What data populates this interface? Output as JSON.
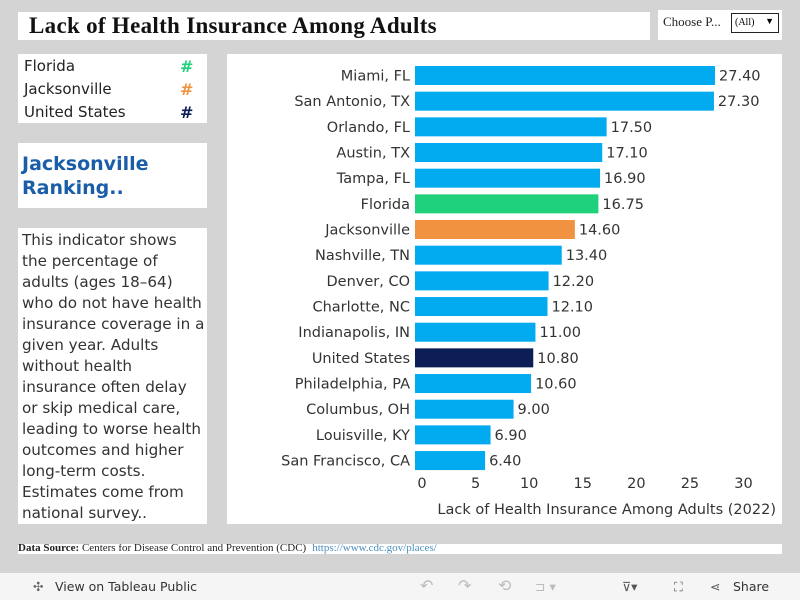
{
  "title": "Lack of Health Insurance Among Adults",
  "filter": {
    "label": "Choose P...",
    "value": "(All)"
  },
  "legend": [
    {
      "label": "Florida",
      "symbol": "#",
      "color": "#1fd17a"
    },
    {
      "label": "Jacksonville",
      "symbol": "#",
      "color": "#f0923f"
    },
    {
      "label": "United States",
      "symbol": "#",
      "color": "#0c1e55"
    }
  ],
  "ranking_title": "Jacksonville Ranking..",
  "description": "This indicator shows the percentage of adults (ages 18–64) who do not have health insurance coverage in a given year. Adults without health insurance often delay or skip medical care, leading to worse health outcomes and higher long-term costs. Estimates come from national survey..",
  "chart_data": {
    "type": "bar",
    "orientation": "horizontal",
    "categories": [
      "Miami, FL",
      "San Antonio, TX",
      "Orlando, FL",
      "Austin, TX",
      "Tampa, FL",
      "Florida",
      "Jacksonville",
      "Nashville, TN",
      "Denver, CO",
      "Charlotte, NC",
      "Indianapolis, IN",
      "United States",
      "Philadelphia, PA",
      "Columbus, OH",
      "Louisville, KY",
      "San Francisco, CA"
    ],
    "values": [
      27.4,
      27.3,
      17.5,
      17.1,
      16.9,
      16.75,
      14.6,
      13.4,
      12.2,
      12.1,
      11.0,
      10.8,
      10.6,
      9.0,
      6.9,
      6.4
    ],
    "labels": [
      "27.40",
      "27.30",
      "17.50",
      "17.10",
      "16.90",
      "16.75",
      "14.60",
      "13.40",
      "12.20",
      "12.10",
      "11.00",
      "10.80",
      "10.60",
      "9.00",
      "6.90",
      "6.40"
    ],
    "colors": {
      "default": "#02aaf0",
      "Florida": "#1fd17a",
      "Jacksonville": "#f0923f",
      "United States": "#0c1e55"
    },
    "xlabel": "Lack of Health Insurance Among Adults (2022)",
    "xticks": [
      0,
      5,
      10,
      15,
      20,
      25,
      30
    ],
    "xlim": [
      0,
      30
    ],
    "grid": false
  },
  "source": {
    "label": "Data Source:",
    "text": "Centers for Disease Control and Prevention (CDC)",
    "url": "https://www.cdc.gov/places/"
  },
  "toolbar": {
    "view": "View on Tableau Public",
    "share": "Share"
  }
}
